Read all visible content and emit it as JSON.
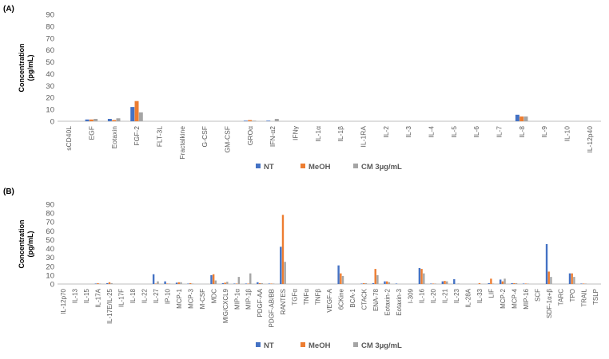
{
  "colors": {
    "NT": "#4472C4",
    "MeOH": "#ED7D31",
    "CM 3µg/mL": "#A5A5A5"
  },
  "chart_data": [
    {
      "panel_label": "(A)",
      "type": "bar",
      "ylabel": "Concentration\n(pg/mL)",
      "ylim": [
        0,
        90
      ],
      "yticks": [
        0,
        10,
        20,
        30,
        40,
        50,
        60,
        70,
        80,
        90
      ],
      "grid": false,
      "legend": "bottom",
      "categories": [
        "sCD40L",
        "EGF",
        "Eotaxin",
        "FGF-2",
        "FLT-3L",
        "Fractalkine",
        "G-CSF",
        "GM-CSF",
        "GROα",
        "IFN-α2",
        "IFNγ",
        "IL-1α",
        "IL-1β",
        "IL-1RA",
        "IL-2",
        "IL-3",
        "IL-4",
        "IL-5",
        "IL-6",
        "IL-7",
        "IL-8",
        "IL-9",
        "IL-10",
        "IL-12p40"
      ],
      "series": [
        {
          "name": "NT",
          "values": [
            0,
            1.5,
            2,
            12,
            0,
            0,
            0,
            0,
            0.5,
            0.5,
            0,
            0,
            0,
            0,
            0,
            0,
            0,
            0,
            0,
            0,
            5.5,
            0,
            0,
            0
          ]
        },
        {
          "name": "MeOH",
          "values": [
            0,
            1.5,
            1,
            17,
            0,
            0,
            0,
            0,
            1,
            0,
            0,
            0,
            0,
            0,
            0,
            0,
            0,
            0,
            0,
            0,
            4,
            0,
            0,
            0
          ]
        },
        {
          "name": "CM 3µg/mL",
          "values": [
            0,
            2,
            2.5,
            7.5,
            0,
            0,
            0,
            0,
            0.5,
            2,
            0,
            0,
            0,
            0,
            0,
            0,
            0,
            0,
            0,
            0,
            4,
            0,
            0,
            0
          ]
        }
      ]
    },
    {
      "panel_label": "(B)",
      "type": "bar",
      "ylabel": "Concentration\n(pg/mL)",
      "ylim": [
        0,
        90
      ],
      "yticks": [
        0,
        10,
        20,
        30,
        40,
        50,
        60,
        70,
        80,
        90
      ],
      "grid": false,
      "legend": "bottom",
      "categories": [
        "IL-12p70",
        "IL-13",
        "IL-15",
        "IL-17A",
        "IL-17E/IL-25",
        "IL-17F",
        "IL-18",
        "IL-22",
        "IL-27",
        "IP-10",
        "MCP-1",
        "MCP-3",
        "M-CSF",
        "MDC",
        "MIG/CXCL9",
        "MIP-1α",
        "MIP-1β",
        "PDGF-AA",
        "PDGF-AB/BB",
        "RANTES",
        "TGFα",
        "TNFα",
        "TNFβ",
        "VEGF-A",
        "6CKine",
        "BCA-1",
        "CTACK",
        "ENA-78",
        "Eotaxin-2",
        "Eotaxin-3",
        "I-309",
        "IL-16",
        "IL-20",
        "IL-21",
        "IL-23",
        "IL-28A",
        "IL-33",
        "LIF",
        "MCP-2",
        "MCP-4",
        "MIP-16",
        "SCF",
        "SDF-1α+β",
        "TARC",
        "TPO",
        "TRAIL",
        "TSLP"
      ],
      "series": [
        {
          "name": "NT",
          "values": [
            0,
            0,
            0,
            0.5,
            1,
            0,
            0,
            0,
            11,
            3,
            1.5,
            0.5,
            0,
            10,
            1,
            0.5,
            0.5,
            2,
            0.5,
            42,
            0,
            0,
            0,
            0,
            21,
            0,
            0.5,
            1,
            3,
            0.5,
            0,
            18,
            0.5,
            3,
            5.5,
            0,
            0,
            1,
            5,
            1,
            0.5,
            0,
            45,
            0,
            12,
            0.5,
            0
          ]
        },
        {
          "name": "MeOH",
          "values": [
            0,
            0,
            0,
            1,
            2,
            0,
            0,
            0,
            0.5,
            0.5,
            2,
            1,
            0,
            11,
            1.5,
            0.5,
            0.5,
            1,
            0.5,
            78,
            0,
            0,
            0,
            0,
            12,
            0,
            1,
            17,
            3,
            0,
            0,
            17,
            0.5,
            3.5,
            0,
            0,
            1,
            6,
            3,
            1,
            0.5,
            0,
            14,
            0,
            12,
            0.5,
            0
          ]
        },
        {
          "name": "CM 3µg/mL",
          "values": [
            0,
            0,
            0,
            0.5,
            1,
            0,
            0,
            0,
            3,
            0.5,
            2,
            0.5,
            0,
            4,
            2.5,
            8,
            12,
            1,
            0.5,
            25,
            0,
            0,
            0,
            0,
            9,
            0,
            1,
            10,
            2,
            0,
            0,
            12,
            0.5,
            3,
            0.5,
            0,
            0,
            0.5,
            6,
            1,
            0.5,
            0,
            8,
            0,
            8,
            0.5,
            0
          ]
        }
      ]
    }
  ]
}
